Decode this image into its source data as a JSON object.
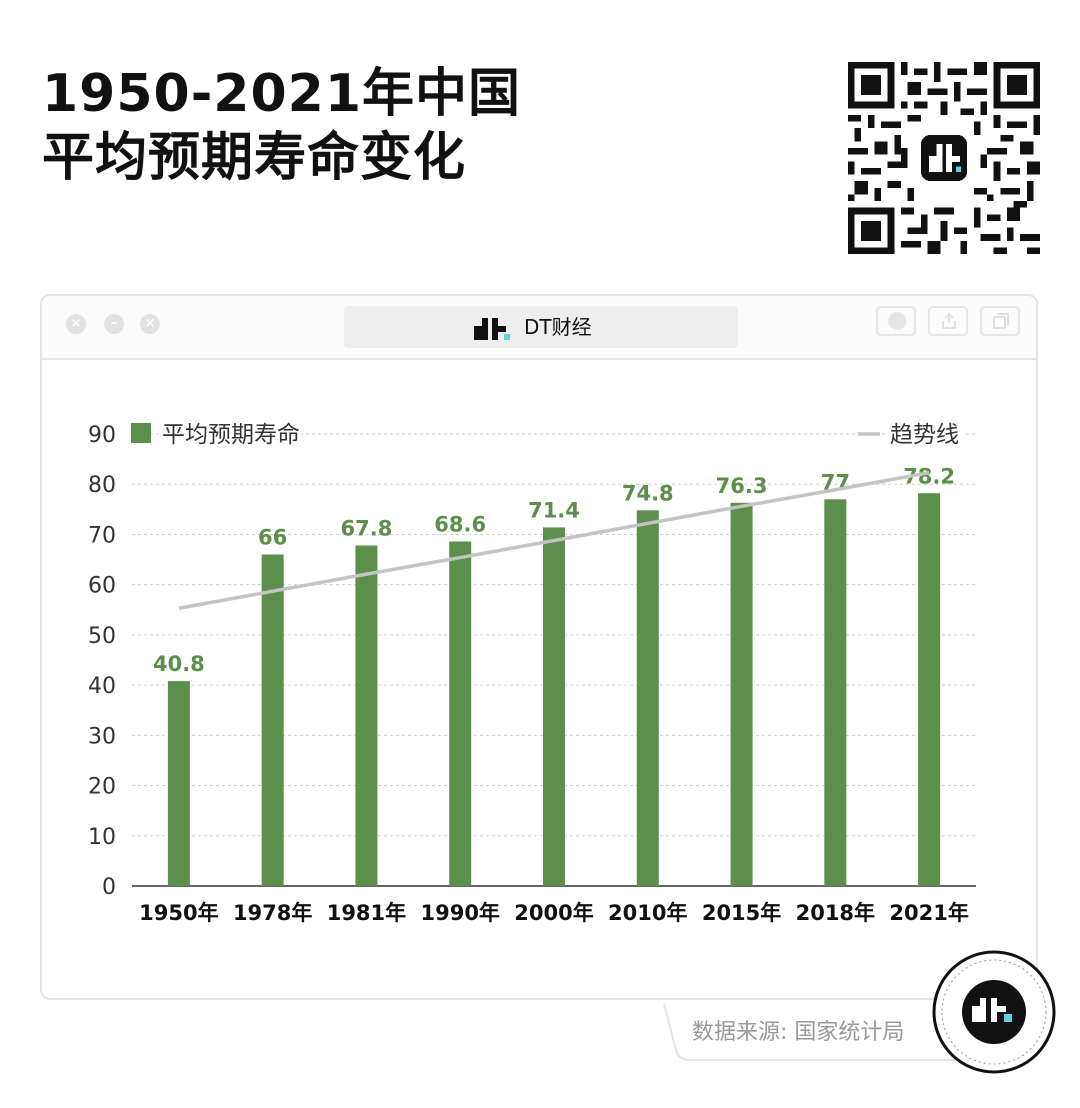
{
  "header": {
    "title_line1": "1950-2021年中国",
    "title_line2": "平均预期寿命变化"
  },
  "window": {
    "tab_label": "DT财经"
  },
  "footer": {
    "source": "数据来源: 国家统计局"
  },
  "colors": {
    "bar": "#5b8f4b",
    "label": "#5b8f4b",
    "trend": "#c4c4c4",
    "axis_text": "#333333",
    "grid": "#cfcfcf"
  },
  "chart_data": {
    "type": "bar",
    "categories": [
      "1950年",
      "1978年",
      "1981年",
      "1990年",
      "2000年",
      "2010年",
      "2015年",
      "2018年",
      "2021年"
    ],
    "series": [
      {
        "name": "平均预期寿命",
        "values": [
          40.8,
          66,
          67.8,
          68.6,
          71.4,
          74.8,
          76.3,
          77,
          78.2
        ]
      },
      {
        "name": "趋势线",
        "type": "line",
        "values": [
          55.3,
          58.7,
          62.1,
          65.4,
          68.8,
          72.2,
          75.6,
          78.9,
          82.3
        ]
      }
    ],
    "value_labels": [
      "40.8",
      "66",
      "67.8",
      "68.6",
      "71.4",
      "74.8",
      "76.3",
      "77",
      "78.2"
    ],
    "ylim": [
      0,
      90
    ],
    "yticks": [
      0,
      10,
      20,
      30,
      40,
      50,
      60,
      70,
      80,
      90
    ],
    "grid": true,
    "legend": "top"
  }
}
